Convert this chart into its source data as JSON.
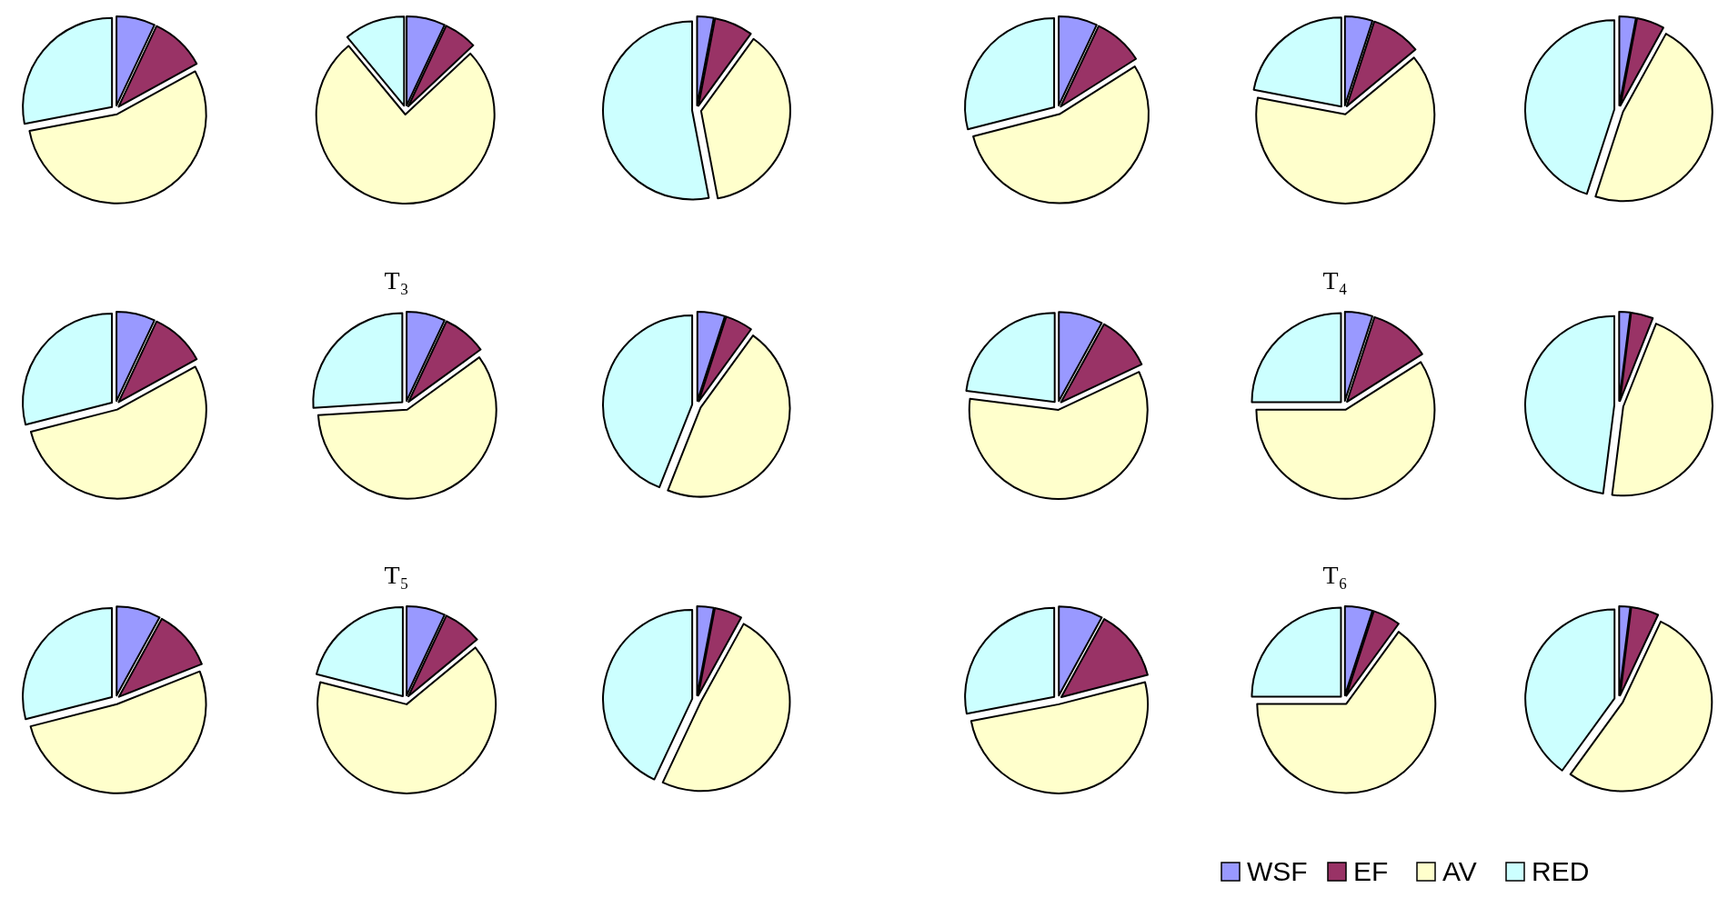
{
  "chart_data": [
    {
      "type": "pie",
      "values": [
        7,
        10,
        55,
        28
      ],
      "colors": [
        "#9999ff",
        "#993366",
        "#ffffcc",
        "#ccffff"
      ]
    },
    {
      "type": "pie",
      "values": [
        7,
        6,
        76,
        11
      ],
      "colors": [
        "#9999ff",
        "#993366",
        "#ffffcc",
        "#ccffff"
      ]
    },
    {
      "type": "pie",
      "values": [
        3,
        7,
        37,
        53
      ],
      "colors": [
        "#9999ff",
        "#993366",
        "#ffffcc",
        "#ccffff"
      ]
    },
    {
      "type": "pie",
      "values": [
        7,
        9,
        55,
        29
      ],
      "colors": [
        "#9999ff",
        "#993366",
        "#ffffcc",
        "#ccffff"
      ]
    },
    {
      "type": "pie",
      "values": [
        5,
        9,
        64,
        22
      ],
      "colors": [
        "#9999ff",
        "#993366",
        "#ffffcc",
        "#ccffff"
      ]
    },
    {
      "type": "pie",
      "values": [
        3,
        5,
        47,
        45
      ],
      "colors": [
        "#9999ff",
        "#993366",
        "#ffffcc",
        "#ccffff"
      ]
    },
    {
      "type": "pie",
      "values": [
        7,
        10,
        54,
        29
      ],
      "colors": [
        "#9999ff",
        "#993366",
        "#ffffcc",
        "#ccffff"
      ]
    },
    {
      "type": "pie",
      "title": "T₃",
      "values": [
        7,
        8,
        59,
        26
      ],
      "colors": [
        "#9999ff",
        "#993366",
        "#ffffcc",
        "#ccffff"
      ]
    },
    {
      "type": "pie",
      "values": [
        5,
        5,
        46,
        44
      ],
      "colors": [
        "#9999ff",
        "#993366",
        "#ffffcc",
        "#ccffff"
      ]
    },
    {
      "type": "pie",
      "values": [
        8,
        10,
        59,
        23
      ],
      "colors": [
        "#9999ff",
        "#993366",
        "#ffffcc",
        "#ccffff"
      ]
    },
    {
      "type": "pie",
      "title": "T₄",
      "values": [
        5,
        11,
        59,
        25
      ],
      "colors": [
        "#9999ff",
        "#993366",
        "#ffffcc",
        "#ccffff"
      ]
    },
    {
      "type": "pie",
      "values": [
        2,
        4,
        46,
        48
      ],
      "colors": [
        "#9999ff",
        "#993366",
        "#ffffcc",
        "#ccffff"
      ]
    },
    {
      "type": "pie",
      "values": [
        8,
        11,
        52,
        29
      ],
      "colors": [
        "#9999ff",
        "#993366",
        "#ffffcc",
        "#ccffff"
      ]
    },
    {
      "type": "pie",
      "title": "T₅",
      "values": [
        7,
        7,
        65,
        21
      ],
      "colors": [
        "#9999ff",
        "#993366",
        "#ffffcc",
        "#ccffff"
      ]
    },
    {
      "type": "pie",
      "values": [
        3,
        5,
        49,
        43
      ],
      "colors": [
        "#9999ff",
        "#993366",
        "#ffffcc",
        "#ccffff"
      ]
    },
    {
      "type": "pie",
      "values": [
        8,
        13,
        51,
        28
      ],
      "colors": [
        "#9999ff",
        "#993366",
        "#ffffcc",
        "#ccffff"
      ]
    },
    {
      "type": "pie",
      "title": "T₆",
      "values": [
        5,
        5,
        65,
        25
      ],
      "colors": [
        "#9999ff",
        "#993366",
        "#ffffcc",
        "#ccffff"
      ]
    },
    {
      "type": "pie",
      "legend": "bottom left",
      "categories": [
        "WSF",
        "EF",
        "AV",
        "RED"
      ],
      "values": [
        2,
        5,
        53,
        40
      ],
      "colors": [
        "#9999ff",
        "#993366",
        "#ffffcc",
        "#ccffff"
      ]
    }
  ]
}
